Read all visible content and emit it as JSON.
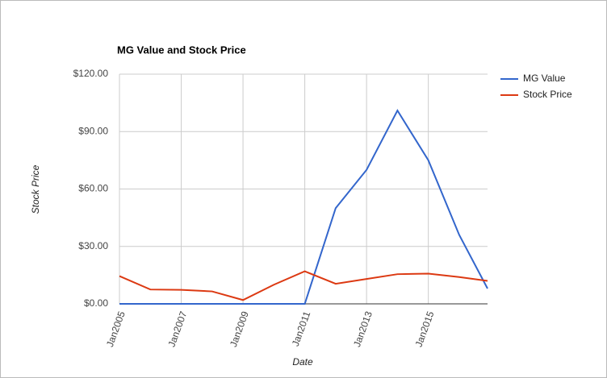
{
  "chart_data": {
    "type": "line",
    "title": "MG Value and Stock Price",
    "x_label": "Date",
    "y_label": "Stock Price",
    "x": [
      "2005-01",
      "2006-01",
      "2007-01",
      "2008-01",
      "2009-01",
      "2010-01",
      "2011-01",
      "2012-01",
      "2013-01",
      "2014-01",
      "2015-01",
      "2016-01",
      "2016-12"
    ],
    "series": [
      {
        "name": "MG Value",
        "color": "#3366cc",
        "values": [
          0,
          0,
          0,
          0,
          0,
          0,
          0,
          50,
          70,
          101,
          75,
          36,
          8
        ]
      },
      {
        "name": "Stock Price",
        "color": "#dc3912",
        "values": [
          14.5,
          7.5,
          7.3,
          6.5,
          2,
          10,
          17,
          10.5,
          13,
          15.5,
          15.8,
          14,
          12
        ]
      }
    ],
    "xlim": [
      "2005-01",
      "2016-12"
    ],
    "xticks": [
      {
        "value": "2005-01",
        "label": "Jan2005"
      },
      {
        "value": "2007-01",
        "label": "Jan2007"
      },
      {
        "value": "2009-01",
        "label": "Jan2009"
      },
      {
        "value": "2011-01",
        "label": "Jan2011"
      },
      {
        "value": "2013-01",
        "label": "Jan2013"
      },
      {
        "value": "2015-01",
        "label": "Jan2015"
      }
    ],
    "ylim": [
      0,
      120
    ],
    "yticks": [
      {
        "value": 0,
        "label": "$0.00"
      },
      {
        "value": 30,
        "label": "$30.00"
      },
      {
        "value": 60,
        "label": "$60.00"
      },
      {
        "value": 90,
        "label": "$90.00"
      },
      {
        "value": 120,
        "label": "$120.00"
      }
    ],
    "grid": true,
    "legend": "right"
  }
}
